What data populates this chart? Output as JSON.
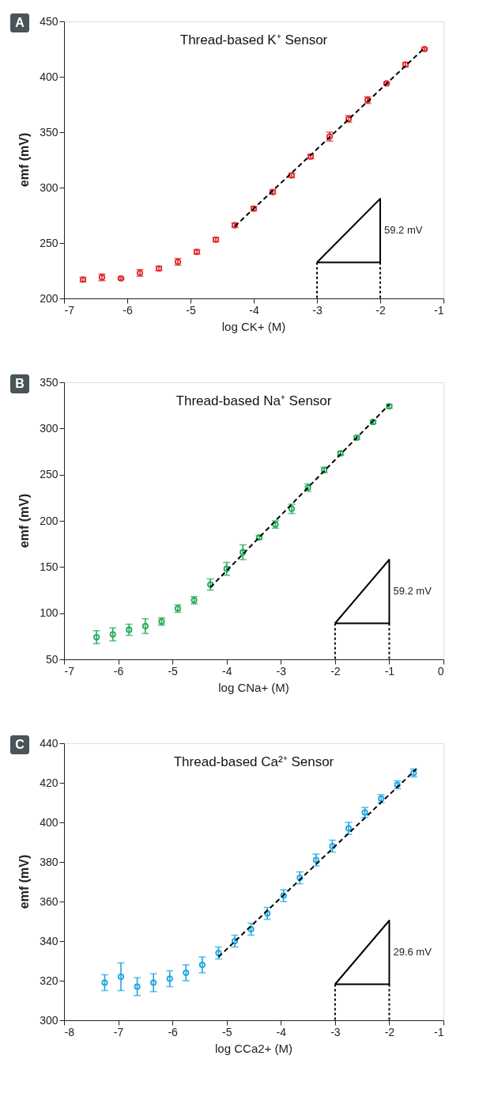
{
  "chart_data": [
    {
      "type": "scatter",
      "title": "Thread-based K⁺ Sensor",
      "xlabel": "log CK+ (M)",
      "ylabel": "emf (mV)",
      "xlim": [
        -7,
        -1
      ],
      "xticks": [
        -7,
        -6,
        -5,
        -4,
        -3,
        -2,
        -1
      ],
      "ylim": [
        200,
        450
      ],
      "yticks": [
        200,
        250,
        300,
        350,
        400,
        450
      ],
      "marker": "circle",
      "annotations": [
        "A",
        "59.2 mV"
      ],
      "series": [
        {
          "type": "scatter",
          "color": "#e0262b",
          "x": [
            -6.7,
            -6.4,
            -6.1,
            -5.8,
            -5.5,
            -5.2,
            -4.9,
            -4.6,
            -4.3,
            -4.0,
            -3.7,
            -3.4,
            -3.1,
            -2.8,
            -2.5,
            -2.2,
            -1.9,
            -1.6,
            -1.3
          ],
          "values": [
            217,
            219,
            218,
            223,
            227,
            233,
            242,
            253,
            266,
            281,
            296,
            311,
            328,
            346,
            362,
            379,
            394,
            411,
            425
          ],
          "errors": [
            2,
            3,
            1,
            3,
            2,
            3,
            2,
            2,
            2,
            2,
            2,
            2,
            2,
            4,
            3,
            3,
            1,
            2,
            1
          ]
        },
        {
          "type": "line",
          "color": "#000000",
          "line_style": "dashed",
          "marker": "none",
          "x": [
            -4.3,
            -1.3
          ],
          "values": [
            265,
            426
          ]
        }
      ]
    },
    {
      "type": "scatter",
      "title": "Thread-based Na⁺ Sensor",
      "xlabel": "log CNa+ (M)",
      "ylabel": "emf (mV)",
      "xlim": [
        -7,
        0
      ],
      "xticks": [
        -7,
        -6,
        -5,
        -4,
        -3,
        -2,
        -1,
        0
      ],
      "ylim": [
        50,
        350
      ],
      "yticks": [
        50,
        100,
        150,
        200,
        250,
        300,
        350
      ],
      "marker": "circle",
      "annotations": [
        "B",
        "59.2 mV"
      ],
      "series": [
        {
          "type": "scatter",
          "color": "#1faa59",
          "x": [
            -6.4,
            -6.1,
            -5.8,
            -5.5,
            -5.2,
            -4.9,
            -4.6,
            -4.3,
            -4.0,
            -3.7,
            -3.4,
            -3.1,
            -2.8,
            -2.5,
            -2.2,
            -1.9,
            -1.6,
            -1.3,
            -1.0
          ],
          "values": [
            74,
            77,
            82,
            86,
            91,
            105,
            114,
            131,
            148,
            166,
            182,
            196,
            213,
            236,
            255,
            273,
            290,
            307,
            324
          ],
          "errors": [
            7,
            7,
            6,
            8,
            4,
            4,
            4,
            6,
            7,
            8,
            2,
            4,
            5,
            4,
            3,
            2,
            2,
            2,
            2
          ]
        },
        {
          "type": "line",
          "color": "#000000",
          "line_style": "dashed",
          "marker": "none",
          "x": [
            -4.3,
            -1.0
          ],
          "values": [
            128,
            326
          ]
        }
      ]
    },
    {
      "type": "scatter",
      "title": "Thread-based Ca²⁺ Sensor",
      "xlabel": "log CCa2+ (M)",
      "ylabel": "emf (mV)",
      "xlim": [
        -8,
        -1
      ],
      "xticks": [
        -8,
        -7,
        -6,
        -5,
        -4,
        -3,
        -2,
        -1
      ],
      "ylim": [
        300,
        440
      ],
      "yticks": [
        300,
        320,
        340,
        360,
        380,
        400,
        420,
        440
      ],
      "marker": "circle",
      "annotations": [
        "C",
        "29.6 mV"
      ],
      "series": [
        {
          "type": "scatter",
          "color": "#1ca4e0",
          "x": [
            -7.25,
            -6.95,
            -6.65,
            -6.35,
            -6.05,
            -5.75,
            -5.45,
            -5.15,
            -4.85,
            -4.55,
            -4.25,
            -3.95,
            -3.65,
            -3.35,
            -3.05,
            -2.75,
            -2.45,
            -2.15,
            -1.85,
            -1.55
          ],
          "values": [
            319,
            322,
            317,
            319,
            321,
            324,
            328,
            334,
            340,
            346,
            354,
            363,
            372,
            381,
            388,
            397,
            405,
            412,
            419,
            425
          ],
          "errors": [
            4,
            7,
            4.5,
            4.5,
            4,
            4,
            4,
            3,
            3,
            3,
            3,
            3,
            3,
            3,
            3,
            3,
            2.5,
            2,
            2,
            2
          ]
        },
        {
          "type": "line",
          "color": "#000000",
          "line_style": "dashed",
          "marker": "none",
          "x": [
            -5.15,
            -1.5
          ],
          "values": [
            332,
            427
          ]
        }
      ]
    }
  ]
}
